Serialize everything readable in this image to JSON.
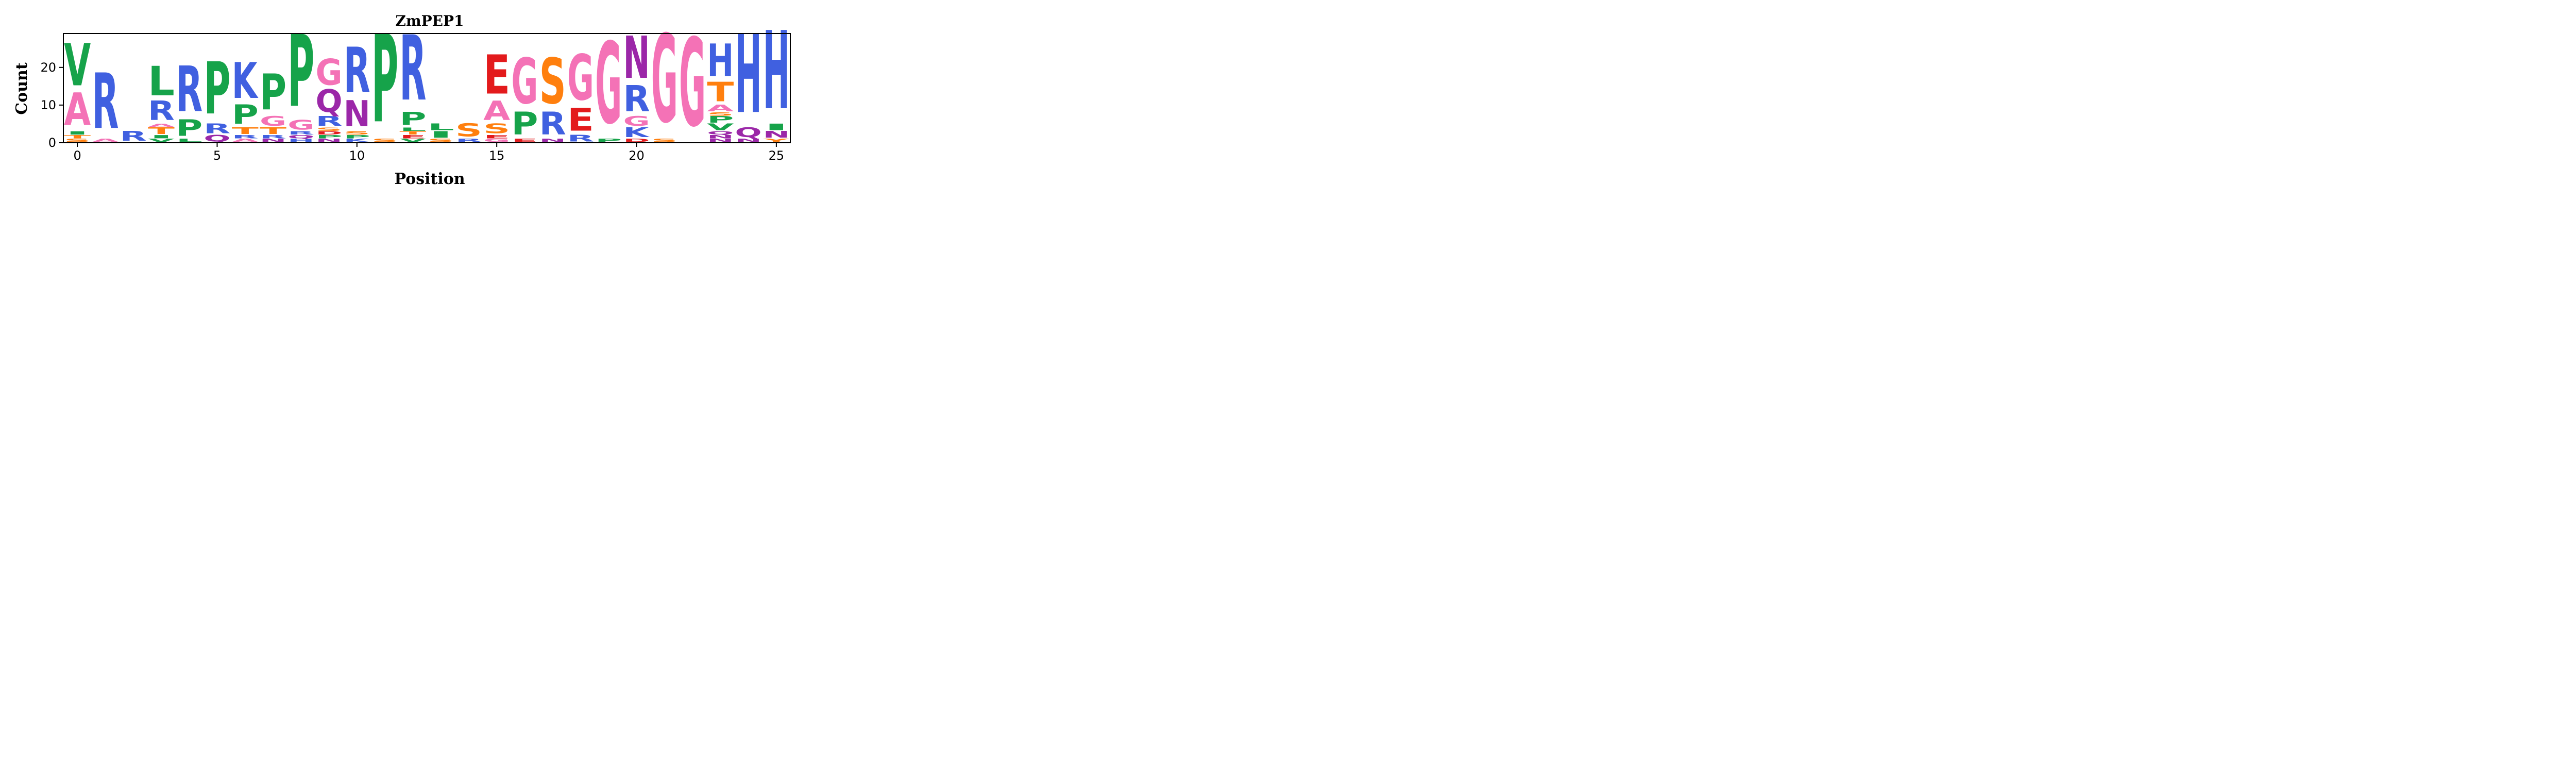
{
  "chart_data": {
    "type": "sequence-logo",
    "title": "ZmPEP1",
    "xlabel": "Position",
    "ylabel": "Count",
    "xlim": [
      -0.5,
      25.5
    ],
    "ylim": [
      0,
      29
    ],
    "xticks": [
      0,
      5,
      10,
      15,
      20,
      25
    ],
    "yticks": [
      0,
      10,
      20
    ],
    "grid": false,
    "legend": "none",
    "colors": {
      "A": "#f472b6",
      "C": "#ff7f0e",
      "D": "#e31a1c",
      "E": "#e31a1c",
      "F": "#16a34a",
      "G": "#f472b6",
      "H": "#4060e0",
      "I": "#16a34a",
      "K": "#4060e0",
      "L": "#16a34a",
      "M": "#16a34a",
      "N": "#9b27a8",
      "P": "#16a34a",
      "Q": "#9b27a8",
      "R": "#4060e0",
      "S": "#ff7f0e",
      "T": "#ff7f0e",
      "V": "#16a34a",
      "W": "#16a34a",
      "Y": "#ff7f0e"
    },
    "positions": [
      {
        "x": 0,
        "letters": [
          {
            "aa": "S",
            "count": 1
          },
          {
            "aa": "T",
            "count": 1
          },
          {
            "aa": "I",
            "count": 1
          },
          {
            "aa": "A",
            "count": 10
          },
          {
            "aa": "V",
            "count": 13
          }
        ]
      },
      {
        "x": 1,
        "letters": [
          {
            "aa": "A",
            "count": 1
          },
          {
            "aa": "R",
            "count": 17
          }
        ]
      },
      {
        "x": 2,
        "letters": [
          {
            "aa": "R",
            "count": 3
          }
        ]
      },
      {
        "x": 3,
        "letters": [
          {
            "aa": "V",
            "count": 1
          },
          {
            "aa": "I",
            "count": 1
          },
          {
            "aa": "T",
            "count": 2
          },
          {
            "aa": "A",
            "count": 1
          },
          {
            "aa": "R",
            "count": 6
          },
          {
            "aa": "L",
            "count": 9
          }
        ]
      },
      {
        "x": 4,
        "letters": [
          {
            "aa": "L",
            "count": 1
          },
          {
            "aa": "P",
            "count": 5
          },
          {
            "aa": "R",
            "count": 14
          }
        ]
      },
      {
        "x": 5,
        "letters": [
          {
            "aa": "Q",
            "count": 2
          },
          {
            "aa": "R",
            "count": 3
          },
          {
            "aa": "P",
            "count": 16
          }
        ]
      },
      {
        "x": 6,
        "letters": [
          {
            "aa": "A",
            "count": 1
          },
          {
            "aa": "R",
            "count": 1
          },
          {
            "aa": "T",
            "count": 2
          },
          {
            "aa": "P",
            "count": 6
          },
          {
            "aa": "K",
            "count": 11
          }
        ]
      },
      {
        "x": 7,
        "letters": [
          {
            "aa": "N",
            "count": 1
          },
          {
            "aa": "R",
            "count": 1
          },
          {
            "aa": "T",
            "count": 2
          },
          {
            "aa": "G",
            "count": 3
          },
          {
            "aa": "P",
            "count": 11
          }
        ]
      },
      {
        "x": 8,
        "letters": [
          {
            "aa": "H",
            "count": 1
          },
          {
            "aa": "Q",
            "count": 1
          },
          {
            "aa": "R",
            "count": 1
          },
          {
            "aa": "G",
            "count": 3
          },
          {
            "aa": "P",
            "count": 22
          }
        ]
      },
      {
        "x": 9,
        "letters": [
          {
            "aa": "N",
            "count": 1
          },
          {
            "aa": "P",
            "count": 1
          },
          {
            "aa": "D",
            "count": 1
          },
          {
            "aa": "S",
            "count": 1
          },
          {
            "aa": "R",
            "count": 3
          },
          {
            "aa": "Q",
            "count": 7
          },
          {
            "aa": "G",
            "count": 8
          }
        ]
      },
      {
        "x": 10,
        "letters": [
          {
            "aa": "K",
            "count": 1
          },
          {
            "aa": "P",
            "count": 1
          },
          {
            "aa": "S",
            "count": 1
          },
          {
            "aa": "N",
            "count": 8
          },
          {
            "aa": "R",
            "count": 14
          }
        ]
      },
      {
        "x": 11,
        "letters": [
          {
            "aa": "S",
            "count": 1
          },
          {
            "aa": "P",
            "count": 27
          }
        ]
      },
      {
        "x": 12,
        "letters": [
          {
            "aa": "V",
            "count": 1
          },
          {
            "aa": "E",
            "count": 1
          },
          {
            "aa": "T",
            "count": 1
          },
          {
            "aa": "L",
            "count": 1
          },
          {
            "aa": "P",
            "count": 4
          },
          {
            "aa": "R",
            "count": 20
          }
        ]
      },
      {
        "x": 13,
        "letters": [
          {
            "aa": "S",
            "count": 1
          },
          {
            "aa": "I",
            "count": 2
          },
          {
            "aa": "L",
            "count": 2
          }
        ]
      },
      {
        "x": 14,
        "letters": [
          {
            "aa": "R",
            "count": 1
          },
          {
            "aa": "S",
            "count": 4
          }
        ]
      },
      {
        "x": 15,
        "letters": [
          {
            "aa": "G",
            "count": 1
          },
          {
            "aa": "E",
            "count": 1
          },
          {
            "aa": "S",
            "count": 3
          },
          {
            "aa": "A",
            "count": 6
          },
          {
            "aa": "E",
            "count": 12
          }
        ]
      },
      {
        "x": 16,
        "letters": [
          {
            "aa": "E",
            "count": 1
          },
          {
            "aa": "P",
            "count": 7
          },
          {
            "aa": "G",
            "count": 14
          }
        ]
      },
      {
        "x": 17,
        "letters": [
          {
            "aa": "N",
            "count": 1
          },
          {
            "aa": "R",
            "count": 7
          },
          {
            "aa": "S",
            "count": 14
          }
        ]
      },
      {
        "x": 18,
        "letters": [
          {
            "aa": "R",
            "count": 2
          },
          {
            "aa": "E",
            "count": 7
          },
          {
            "aa": "G",
            "count": 14
          }
        ]
      },
      {
        "x": 19,
        "letters": [
          {
            "aa": "P",
            "count": 1
          },
          {
            "aa": "G",
            "count": 25
          }
        ]
      },
      {
        "x": 20,
        "letters": [
          {
            "aa": "D",
            "count": 1
          },
          {
            "aa": "K",
            "count": 3
          },
          {
            "aa": "G",
            "count": 3
          },
          {
            "aa": "R",
            "count": 8
          },
          {
            "aa": "N",
            "count": 13
          }
        ]
      },
      {
        "x": 21,
        "letters": [
          {
            "aa": "S",
            "count": 1
          },
          {
            "aa": "G",
            "count": 27
          }
        ]
      },
      {
        "x": 22,
        "letters": [
          {
            "aa": "G",
            "count": 27
          }
        ]
      },
      {
        "x": 23,
        "letters": [
          {
            "aa": "N",
            "count": 1
          },
          {
            "aa": "N",
            "count": 1
          },
          {
            "aa": "Q",
            "count": 1
          },
          {
            "aa": "V",
            "count": 2
          },
          {
            "aa": "P",
            "count": 2
          },
          {
            "aa": "S",
            "count": 1
          },
          {
            "aa": "A",
            "count": 2
          },
          {
            "aa": "T",
            "count": 6
          },
          {
            "aa": "H",
            "count": 10
          }
        ]
      },
      {
        "x": 24,
        "letters": [
          {
            "aa": "N",
            "count": 1
          },
          {
            "aa": "Q",
            "count": 3
          },
          {
            "aa": "H",
            "count": 24
          }
        ]
      },
      {
        "x": 25,
        "letters": [
          {
            "aa": "Y",
            "count": 1
          },
          {
            "aa": "N",
            "count": 2
          },
          {
            "aa": "I",
            "count": 2
          },
          {
            "aa": "H",
            "count": 24
          }
        ]
      }
    ]
  }
}
